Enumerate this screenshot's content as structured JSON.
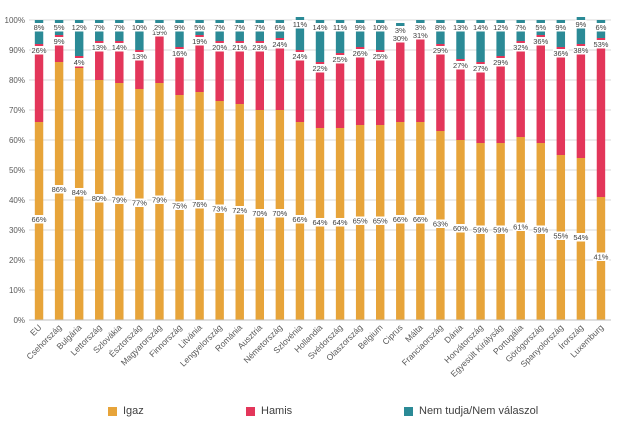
{
  "chart_data": {
    "type": "bar",
    "stacked": true,
    "ylim": [
      0,
      100
    ],
    "yticks": [
      "0%",
      "10%",
      "20%",
      "30%",
      "40%",
      "50%",
      "60%",
      "70%",
      "80%",
      "90%",
      "100%"
    ],
    "grid": true,
    "legend_position": "bottom",
    "categories": [
      "EU",
      "Csehország",
      "Bulgária",
      "Lettország",
      "Szlovákia",
      "Észtország",
      "Magyarország",
      "Finnország",
      "Litvánia",
      "Lengyelország",
      "Románia",
      "Ausztria",
      "Németország",
      "Szlovénia",
      "Hollandia",
      "Svédország",
      "Olaszország",
      "Belgium",
      "Ciprus",
      "Málta",
      "Franciaország",
      "Dánia",
      "Horvátország",
      "Egyesült Királyság",
      "Portugália",
      "Görögország",
      "Spanyolország",
      "Írország",
      "Luxemburg"
    ],
    "series": [
      {
        "name": "Igaz",
        "color": "#E7A43A",
        "values": [
          66,
          86,
          84,
          80,
          79,
          77,
          79,
          75,
          76,
          73,
          72,
          70,
          70,
          66,
          64,
          64,
          65,
          65,
          66,
          66,
          63,
          60,
          59,
          59,
          61,
          59,
          55,
          54,
          41
        ]
      },
      {
        "name": "Hamis",
        "color": "#E3365A",
        "values": [
          26,
          9,
          4,
          13,
          14,
          13,
          19,
          16,
          19,
          20,
          21,
          23,
          24,
          24,
          22,
          25,
          26,
          25,
          30,
          31,
          29,
          27,
          27,
          29,
          32,
          36,
          36,
          38,
          53
        ]
      },
      {
        "name": "Nem tudja/Nem válaszol",
        "color": "#2B8A96",
        "values": [
          8,
          5,
          12,
          7,
          7,
          10,
          2,
          9,
          5,
          7,
          7,
          7,
          6,
          11,
          14,
          11,
          9,
          10,
          3,
          3,
          8,
          13,
          14,
          12,
          7,
          5,
          9,
          9,
          6
        ]
      }
    ]
  }
}
